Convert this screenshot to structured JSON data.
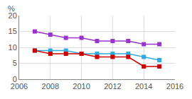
{
  "chart_data": {
    "type": "line",
    "ylabel": "%",
    "x": [
      2007,
      2008,
      2009,
      2010,
      2011,
      2012,
      2013,
      2014,
      2015
    ],
    "series": [
      {
        "color": "#9933cc",
        "values": [
          15,
          14,
          13,
          13,
          12,
          12,
          12,
          11,
          11
        ]
      },
      {
        "color": "#33aadd",
        "values": [
          9,
          9,
          9,
          8,
          8,
          8,
          8,
          7,
          6
        ]
      },
      {
        "color": "#cc0000",
        "values": [
          9,
          8,
          8,
          8,
          7,
          7,
          7,
          4,
          4
        ]
      }
    ],
    "xlim": [
      2006,
      2016
    ],
    "xticks": [
      2006,
      2008,
      2010,
      2012,
      2014,
      2016
    ],
    "ylim": [
      0,
      20
    ],
    "yticks": [
      0,
      5,
      10,
      15,
      20
    ],
    "grid": true,
    "marker": "square",
    "line_style": "solid"
  }
}
